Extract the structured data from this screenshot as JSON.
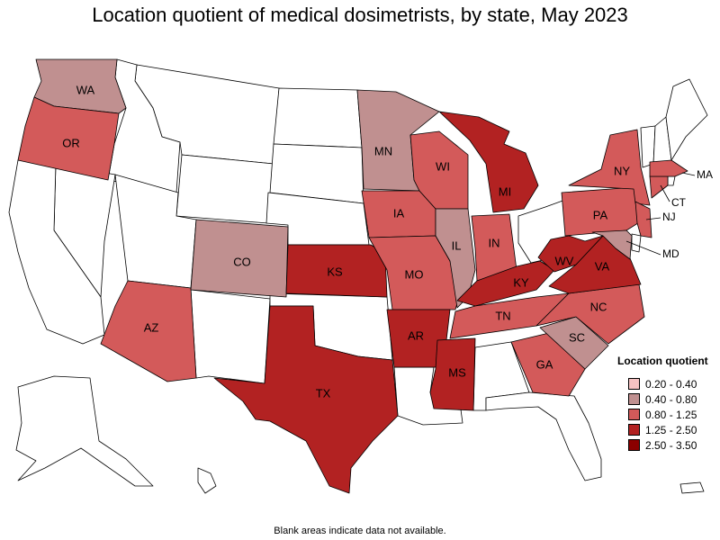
{
  "title": "Location quotient of medical dosimetrists, by state, May 2023",
  "footnote": "Blank areas indicate data not available.",
  "legend": {
    "title": "Location quotient",
    "items": [
      {
        "label": "0.20 - 0.40",
        "color": "#f6c2c2"
      },
      {
        "label": "0.40 - 0.80",
        "color": "#c09090"
      },
      {
        "label": "0.80 - 1.25",
        "color": "#d35a5a"
      },
      {
        "label": "1.25 - 2.50",
        "color": "#b22222"
      },
      {
        "label": "2.50 - 3.50",
        "color": "#8b0000"
      }
    ]
  },
  "colors": {
    "blank": "#ffffff",
    "border": "#000000"
  },
  "states": [
    {
      "abbr": "WA",
      "bin": "0.40 - 0.80"
    },
    {
      "abbr": "OR",
      "bin": "0.80 - 1.25"
    },
    {
      "abbr": "AZ",
      "bin": "0.80 - 1.25"
    },
    {
      "abbr": "CO",
      "bin": "0.40 - 0.80"
    },
    {
      "abbr": "KS",
      "bin": "1.25 - 2.50"
    },
    {
      "abbr": "TX",
      "bin": "1.25 - 2.50"
    },
    {
      "abbr": "MN",
      "bin": "0.40 - 0.80"
    },
    {
      "abbr": "IA",
      "bin": "0.80 - 1.25"
    },
    {
      "abbr": "MO",
      "bin": "0.80 - 1.25"
    },
    {
      "abbr": "AR",
      "bin": "1.25 - 2.50"
    },
    {
      "abbr": "MS",
      "bin": "1.25 - 2.50"
    },
    {
      "abbr": "WI",
      "bin": "0.80 - 1.25"
    },
    {
      "abbr": "IL",
      "bin": "0.40 - 0.80"
    },
    {
      "abbr": "MI",
      "bin": "1.25 - 2.50"
    },
    {
      "abbr": "IN",
      "bin": "0.80 - 1.25"
    },
    {
      "abbr": "KY",
      "bin": "1.25 - 2.50"
    },
    {
      "abbr": "TN",
      "bin": "0.80 - 1.25"
    },
    {
      "abbr": "GA",
      "bin": "0.80 - 1.25"
    },
    {
      "abbr": "SC",
      "bin": "0.40 - 0.80"
    },
    {
      "abbr": "NC",
      "bin": "0.80 - 1.25"
    },
    {
      "abbr": "VA",
      "bin": "1.25 - 2.50"
    },
    {
      "abbr": "WV",
      "bin": "1.25 - 2.50"
    },
    {
      "abbr": "PA",
      "bin": "0.80 - 1.25"
    },
    {
      "abbr": "NY",
      "bin": "0.80 - 1.25"
    },
    {
      "abbr": "MD",
      "bin": "0.40 - 0.80"
    },
    {
      "abbr": "NJ",
      "bin": "0.80 - 1.25"
    },
    {
      "abbr": "CT",
      "bin": "0.80 - 1.25"
    },
    {
      "abbr": "MA",
      "bin": "0.80 - 1.25"
    }
  ]
}
